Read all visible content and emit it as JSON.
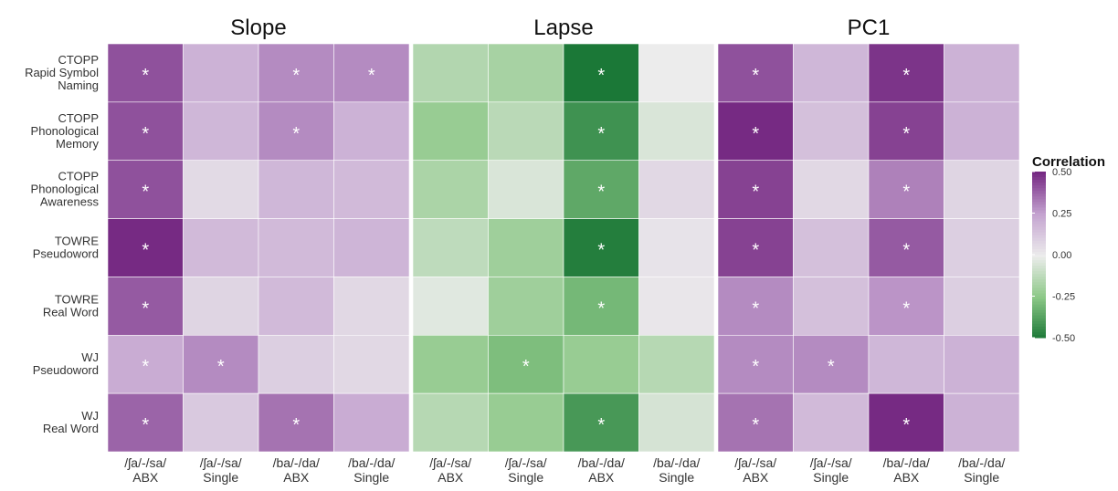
{
  "chart_data": {
    "type": "heatmap",
    "x_categories": [
      "/ʃa/-/sa/\nABX",
      "/ʃa/-/sa/\nSingle",
      "/ba/-/da/\nABX",
      "/ba/-/da/\nSingle"
    ],
    "y_categories": [
      "CTOPP\nRapid Symbol\nNaming",
      "CTOPP\nPhonological\nMemory",
      "CTOPP\nPhonological\nAwareness",
      "TOWRE\nPseudoword",
      "TOWRE\nReal Word",
      "WJ\nPseudoword",
      "WJ\nReal Word"
    ],
    "facets": [
      {
        "title": "Slope",
        "values": [
          [
            0.42,
            0.2,
            0.3,
            0.3
          ],
          [
            0.42,
            0.18,
            0.3,
            0.2
          ],
          [
            0.42,
            0.06,
            0.18,
            0.17
          ],
          [
            0.5,
            0.17,
            0.17,
            0.19
          ],
          [
            0.4,
            0.08,
            0.17,
            0.07
          ],
          [
            0.22,
            0.3,
            0.1,
            0.07
          ],
          [
            0.38,
            0.12,
            0.35,
            0.22
          ]
        ],
        "significance": [
          [
            "*",
            null,
            "*",
            "*"
          ],
          [
            "*",
            null,
            "*",
            null
          ],
          [
            "*",
            null,
            null,
            null
          ],
          [
            "*",
            null,
            null,
            null
          ],
          [
            "*",
            null,
            null,
            null
          ],
          [
            "*",
            "*",
            null,
            null
          ],
          [
            "*",
            null,
            "*",
            null
          ]
        ]
      },
      {
        "title": "Lapse",
        "values": [
          [
            -0.15,
            -0.18,
            -0.5,
            0.0
          ],
          [
            -0.22,
            -0.13,
            -0.42,
            -0.05
          ],
          [
            -0.17,
            -0.05,
            -0.35,
            0.07
          ],
          [
            -0.12,
            -0.2,
            -0.48,
            0.03
          ],
          [
            -0.03,
            -0.2,
            -0.3,
            0.02
          ],
          [
            -0.22,
            -0.28,
            -0.22,
            -0.14
          ],
          [
            -0.14,
            -0.22,
            -0.4,
            -0.06
          ]
        ],
        "significance": [
          [
            null,
            null,
            "*",
            null
          ],
          [
            null,
            null,
            "*",
            null
          ],
          [
            null,
            null,
            "*",
            null
          ],
          [
            null,
            null,
            "*",
            null
          ],
          [
            null,
            null,
            "*",
            null
          ],
          [
            null,
            "*",
            null,
            null
          ],
          [
            null,
            null,
            "*",
            null
          ]
        ]
      },
      {
        "title": "PC1",
        "values": [
          [
            0.42,
            0.18,
            0.48,
            0.2
          ],
          [
            0.5,
            0.15,
            0.45,
            0.2
          ],
          [
            0.45,
            0.07,
            0.32,
            0.08
          ],
          [
            0.45,
            0.15,
            0.4,
            0.1
          ],
          [
            0.3,
            0.15,
            0.28,
            0.1
          ],
          [
            0.3,
            0.3,
            0.18,
            0.2
          ],
          [
            0.35,
            0.17,
            0.5,
            0.2
          ]
        ],
        "significance": [
          [
            "*",
            null,
            "*",
            null
          ],
          [
            "*",
            null,
            "*",
            null
          ],
          [
            "*",
            null,
            "*",
            null
          ],
          [
            "*",
            null,
            "*",
            null
          ],
          [
            "*",
            null,
            "*",
            null
          ],
          [
            "*",
            "*",
            null,
            null
          ],
          [
            "*",
            null,
            "*",
            null
          ]
        ]
      }
    ],
    "colorbar_title": "Correlation",
    "clim": [
      -0.5,
      0.5
    ],
    "cticks": [
      {
        "value": 0.5,
        "label": "0.50"
      },
      {
        "value": 0.25,
        "label": "0.25"
      },
      {
        "value": 0,
        "label": "0.00"
      },
      {
        "value": -0.25,
        "label": "-0.25"
      },
      {
        "value": -0.5,
        "label": "-0.50"
      }
    ],
    "colors": [
      "#762a83",
      "#c4a3d0",
      "#ececec",
      "#8cc887",
      "#1b7837"
    ]
  }
}
